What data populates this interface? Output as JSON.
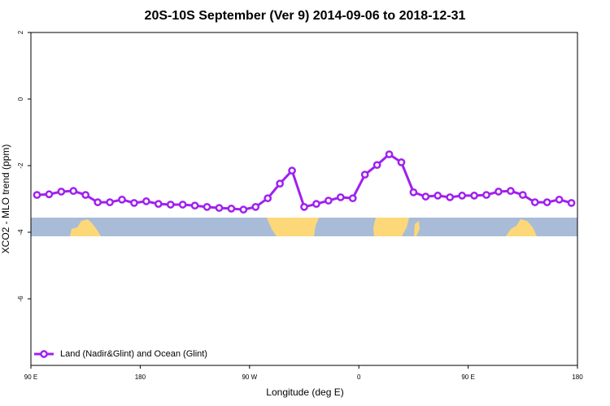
{
  "chart_data": {
    "type": "line",
    "title": "20S-10S September (Ver 9)   2014-09-06 to 2018-12-31",
    "x_label": "Longitude (deg E)",
    "y_label": "XCO2 - MLO trend (ppm)",
    "x": [
      95,
      105,
      115,
      125,
      135,
      145,
      155,
      165,
      175,
      185,
      195,
      205,
      215,
      225,
      235,
      245,
      255,
      265,
      275,
      285,
      295,
      305,
      315,
      325,
      335,
      345,
      355,
      365,
      375,
      385,
      395,
      405,
      415,
      425,
      435,
      445,
      455,
      465,
      475,
      485,
      495,
      505,
      515,
      525,
      535
    ],
    "series": [
      {
        "name": "Land (Nadir&Glint) and Ocean (Glint)",
        "color": "#a020f0",
        "values": [
          -2.88,
          -2.86,
          -2.78,
          -2.76,
          -2.88,
          -3.1,
          -3.1,
          -3.02,
          -3.12,
          -3.07,
          -3.15,
          -3.17,
          -3.17,
          -3.2,
          -3.24,
          -3.27,
          -3.29,
          -3.32,
          -3.24,
          -2.98,
          -2.54,
          -2.15,
          -3.24,
          -3.15,
          -3.05,
          -2.95,
          -2.98,
          -2.27,
          -1.98,
          -1.66,
          -1.9,
          -2.8,
          -2.93,
          -2.9,
          -2.95,
          -2.9,
          -2.9,
          -2.88,
          -2.78,
          -2.76,
          -2.88,
          -3.1,
          -3.1,
          -3.02,
          -3.12
        ]
      }
    ],
    "xlim": [
      90,
      540
    ],
    "xticks": [
      {
        "value": 90,
        "label": "90 E"
      },
      180,
      {
        "value": 270,
        "label": "90 W"
      },
      {
        "value": 360,
        "label": "0"
      },
      {
        "value": 450,
        "label": "90 E"
      },
      {
        "value": 540,
        "label": "180"
      }
    ],
    "ylim": [
      -8,
      2
    ],
    "yticks": [
      2,
      0,
      -2,
      -4,
      -6
    ],
    "legend": "bottom-left"
  }
}
